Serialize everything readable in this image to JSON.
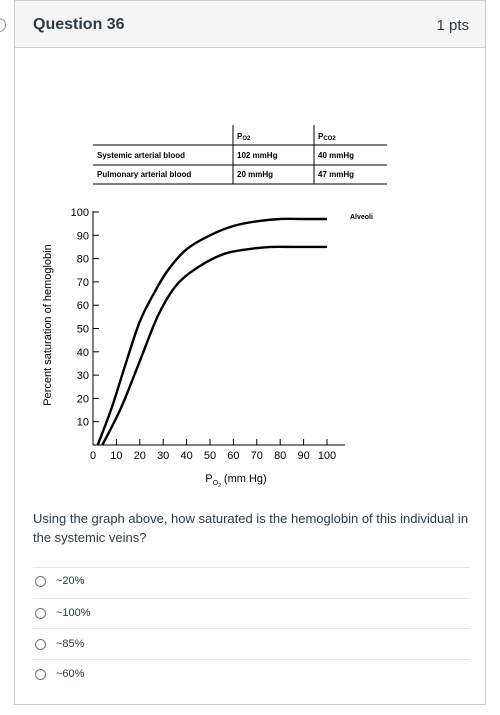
{
  "question": {
    "title": "Question 36",
    "points": "1 pts",
    "text": "Using the graph above, how saturated is the hemoglobin of this individual in the systemic veins?"
  },
  "table": {
    "col_po2": "Po2",
    "col_pco2": "Pco2",
    "rows": [
      {
        "label": "Systemic arterial blood",
        "po2": "102 mmHg",
        "pco2": "40 mmHg"
      },
      {
        "label": "Pulmonary arterial blood",
        "po2": "20 mmHg",
        "pco2": "47 mmHg"
      }
    ]
  },
  "chart_data": {
    "type": "line",
    "title": "",
    "xlabel": "Po2 (mm Hg)",
    "ylabel": "Percent saturation of hemoglobin",
    "xlim": [
      0,
      110
    ],
    "ylim": [
      0,
      100
    ],
    "x_ticks": [
      0,
      10,
      20,
      30,
      40,
      50,
      60,
      70,
      80,
      90,
      100
    ],
    "y_ticks": [
      10,
      20,
      30,
      40,
      50,
      60,
      70,
      80,
      90,
      100
    ],
    "annotation": "Alveoli",
    "series": [
      {
        "points": [
          [
            2,
            0
          ],
          [
            8,
            16
          ],
          [
            14,
            35
          ],
          [
            20,
            53
          ],
          [
            26,
            65
          ],
          [
            32,
            75
          ],
          [
            40,
            84
          ],
          [
            50,
            90
          ],
          [
            60,
            94
          ],
          [
            70,
            96
          ],
          [
            80,
            97
          ],
          [
            90,
            97
          ],
          [
            100,
            97
          ]
        ]
      },
      {
        "points": [
          [
            4,
            0
          ],
          [
            12,
            16
          ],
          [
            20,
            36
          ],
          [
            28,
            56
          ],
          [
            36,
            69
          ],
          [
            46,
            77
          ],
          [
            56,
            82
          ],
          [
            66,
            84
          ],
          [
            76,
            85
          ],
          [
            86,
            85
          ],
          [
            95,
            85
          ],
          [
            100,
            85
          ]
        ]
      }
    ]
  },
  "answers": [
    {
      "label": "~20%"
    },
    {
      "label": "~100%"
    },
    {
      "label": "~85%"
    },
    {
      "label": "~60%"
    }
  ]
}
